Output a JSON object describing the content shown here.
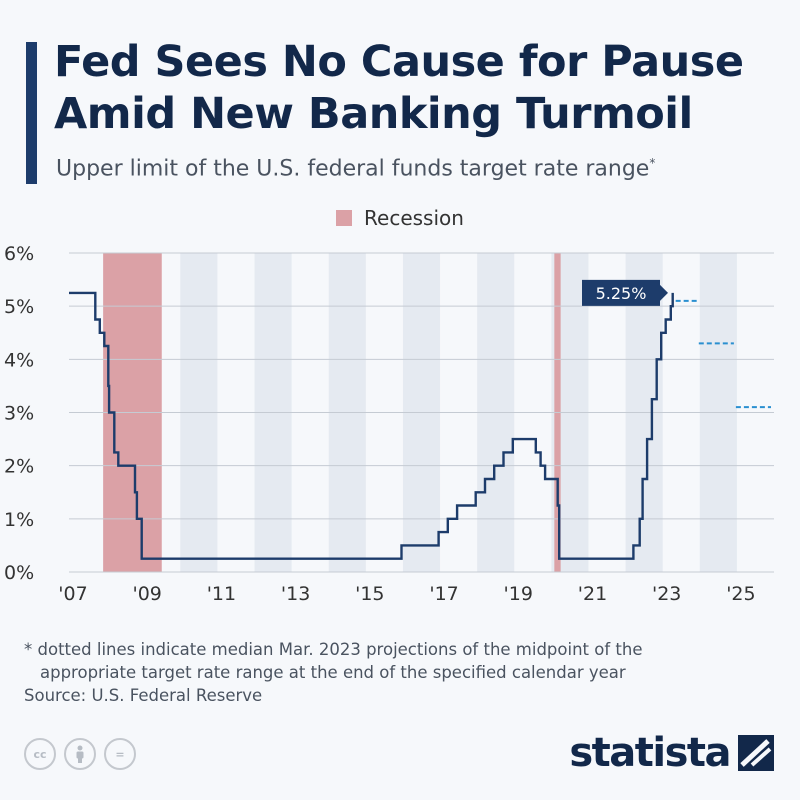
{
  "header": {
    "title_line1": "Fed Sees No Cause for Pause",
    "title_line2": "Amid New Banking Turmoil",
    "subtitle": "Upper limit of the U.S. federal funds target rate range",
    "subtitle_mark": "*"
  },
  "legend": {
    "label": "Recession"
  },
  "colors": {
    "accent": "#1d3c6b",
    "recession": "#dba1a6",
    "line": "#1d3c6b",
    "projection": "#2a8fd0",
    "band": "#e5eaf1"
  },
  "chart_data": {
    "type": "line",
    "title": "Fed Sees No Cause for Pause Amid New Banking Turmoil",
    "ylabel": "Upper limit of the U.S. federal funds target rate range",
    "xlim": [
      2007.0,
      2026.0
    ],
    "ylim": [
      0,
      6
    ],
    "y_ticks": [
      0,
      1,
      2,
      3,
      4,
      5,
      6
    ],
    "y_tick_labels": [
      "0%",
      "1%",
      "2%",
      "3%",
      "4%",
      "5%",
      "6%"
    ],
    "x_ticks": [
      2007,
      2009,
      2011,
      2013,
      2015,
      2017,
      2019,
      2021,
      2023,
      2025
    ],
    "x_tick_labels": [
      "'07",
      "'09",
      "'11",
      "'13",
      "'15",
      "'17",
      "'19",
      "'21",
      "'23",
      "'25"
    ],
    "recessions": [
      {
        "start": 2007.92,
        "end": 2009.5
      },
      {
        "start": 2020.08,
        "end": 2020.25
      }
    ],
    "series": [
      {
        "name": "Upper limit of the federal funds target rate",
        "step": true,
        "points": [
          [
            2007.0,
            5.25
          ],
          [
            2007.71,
            4.75
          ],
          [
            2007.83,
            4.5
          ],
          [
            2007.95,
            4.25
          ],
          [
            2008.06,
            3.5
          ],
          [
            2008.08,
            3.0
          ],
          [
            2008.22,
            2.25
          ],
          [
            2008.33,
            2.0
          ],
          [
            2008.78,
            1.5
          ],
          [
            2008.83,
            1.0
          ],
          [
            2008.96,
            0.25
          ],
          [
            2015.96,
            0.5
          ],
          [
            2016.96,
            0.75
          ],
          [
            2017.21,
            1.0
          ],
          [
            2017.46,
            1.25
          ],
          [
            2017.96,
            1.5
          ],
          [
            2018.21,
            1.75
          ],
          [
            2018.46,
            2.0
          ],
          [
            2018.71,
            2.25
          ],
          [
            2018.96,
            2.5
          ],
          [
            2019.58,
            2.25
          ],
          [
            2019.71,
            2.0
          ],
          [
            2019.83,
            1.75
          ],
          [
            2020.17,
            1.25
          ],
          [
            2020.21,
            0.25
          ],
          [
            2022.21,
            0.5
          ],
          [
            2022.38,
            1.0
          ],
          [
            2022.46,
            1.75
          ],
          [
            2022.58,
            2.5
          ],
          [
            2022.71,
            3.25
          ],
          [
            2022.84,
            4.0
          ],
          [
            2022.96,
            4.5
          ],
          [
            2023.08,
            4.75
          ],
          [
            2023.22,
            5.0
          ],
          [
            2023.27,
            5.25
          ]
        ]
      }
    ],
    "projections": [
      {
        "year": 2023,
        "value": 5.1
      },
      {
        "year": 2024,
        "value": 4.3
      },
      {
        "year": 2025,
        "value": 3.1
      }
    ],
    "annotation": {
      "label": "5.25%",
      "value": 5.25
    }
  },
  "footer": {
    "note_line1": "* dotted lines indicate median Mar. 2023 projections of the midpoint of the",
    "note_line2": "appropriate target rate range at the end of the specified calendar year",
    "source": "Source: U.S. Federal Reserve",
    "license_icons": [
      "cc",
      "by",
      "="
    ],
    "brand": "statista"
  }
}
